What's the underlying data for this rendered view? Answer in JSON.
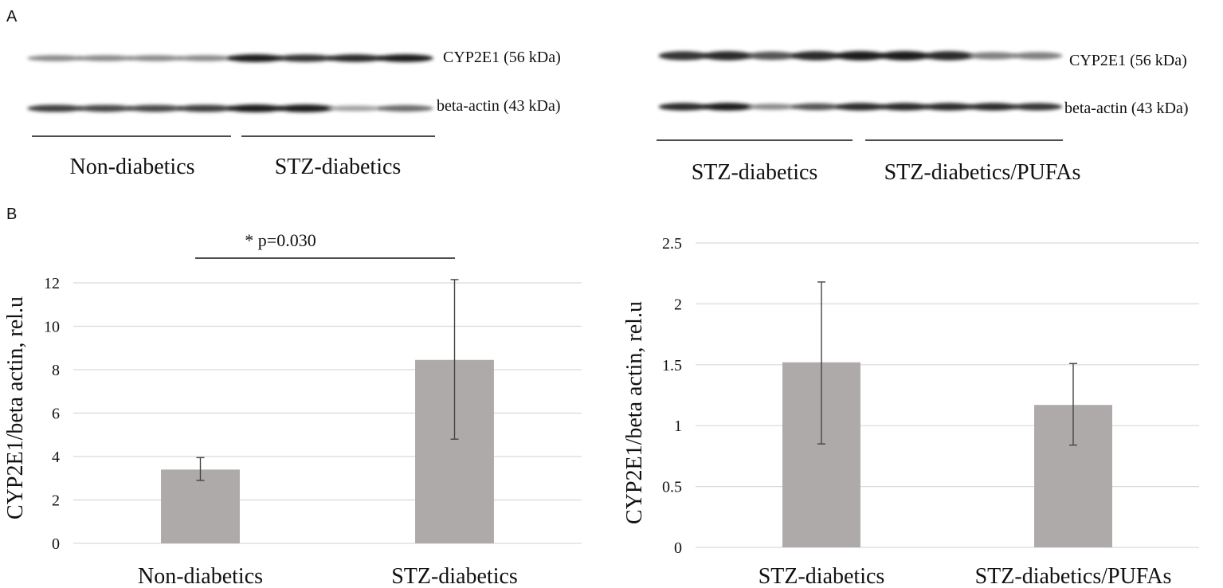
{
  "panel_a": {
    "label": "A",
    "left_blot": {
      "band1_label": "CYP2E1 (56 kDa)",
      "band2_label": "beta-actin (43 kDa)",
      "group1_label": "Non-diabetics",
      "group2_label": "STZ-diabetics",
      "cyp_band_intensity": [
        0.45,
        0.45,
        0.45,
        0.45,
        0.95,
        0.85,
        0.9,
        0.95
      ],
      "actin_band_intensity": [
        0.8,
        0.75,
        0.75,
        0.8,
        0.95,
        0.95,
        0.35,
        0.6
      ]
    },
    "right_blot": {
      "band1_label": "CYP2E1 (56 kDa)",
      "band2_label": "beta-actin (43 kDa)",
      "group1_label": "STZ-diabetics",
      "group2_label": "STZ-diabetics/PUFAs",
      "cyp_band_intensity": [
        0.85,
        0.9,
        0.7,
        0.9,
        0.95,
        0.95,
        0.9,
        0.5,
        0.5
      ],
      "actin_band_intensity": [
        0.9,
        0.95,
        0.45,
        0.7,
        0.9,
        0.9,
        0.9,
        0.9,
        0.85
      ]
    }
  },
  "panel_b": {
    "label": "B",
    "significance_label": "* p=0.030"
  },
  "chart_data": [
    {
      "type": "bar",
      "categories": [
        "Non-diabetics",
        "STZ-diabetics"
      ],
      "values": [
        3.4,
        8.45
      ],
      "error_low": [
        2.9,
        4.8
      ],
      "error_high": [
        3.95,
        12.15
      ],
      "ylabel": "CYP2E1/beta actin, rel.u",
      "xlabel": "",
      "ylim": [
        0,
        12
      ],
      "yticks": [
        0,
        2,
        4,
        6,
        8,
        10,
        12
      ],
      "ytick_labels": [
        "0",
        "2",
        "4",
        "6",
        "8",
        "10",
        "12"
      ],
      "grid": true,
      "bar_color": "#aeaaaa",
      "annotation": "* p=0.030"
    },
    {
      "type": "bar",
      "categories": [
        "STZ-diabetics",
        "STZ-diabetics/PUFAs"
      ],
      "values": [
        1.52,
        1.17
      ],
      "error_low": [
        0.85,
        0.84
      ],
      "error_high": [
        2.18,
        1.51
      ],
      "ylabel": "CYP2E1/beta actin, rel.u",
      "xlabel": "",
      "ylim": [
        0,
        2.5
      ],
      "yticks": [
        0,
        0.5,
        1,
        1.5,
        2,
        2.5
      ],
      "ytick_labels": [
        "0",
        "0.5",
        "1",
        "1.5",
        "2",
        "2.5"
      ],
      "grid": true,
      "bar_color": "#aeaaaa"
    }
  ]
}
